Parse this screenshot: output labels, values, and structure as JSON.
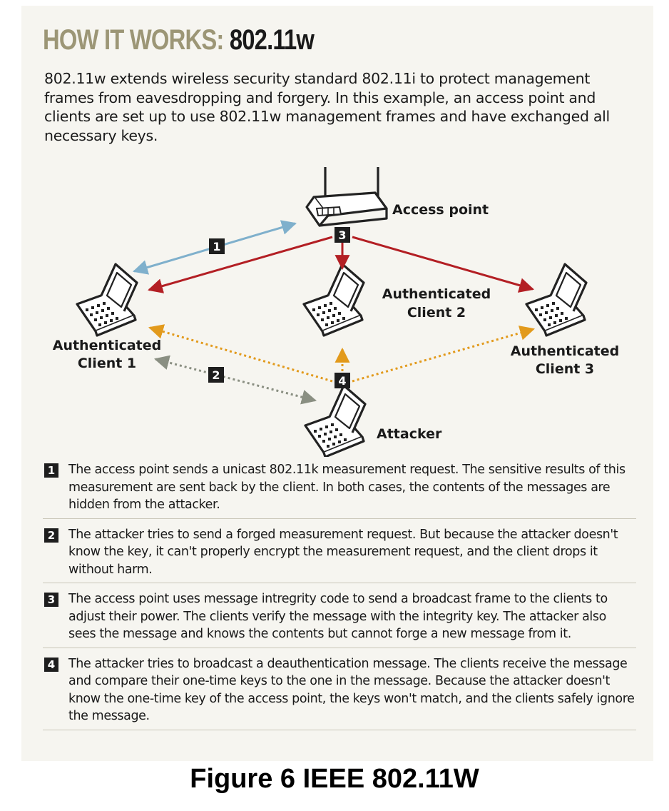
{
  "title": {
    "highlight": "HOW IT WORKS:",
    "model": "802.11w"
  },
  "intro": "802.11w extends wireless security standard 802.11i to protect management frames from eavesdropping and forgery. In this example, an access point and clients are set up to use 802.11w management frames and have exchanged all necessary keys.",
  "diagram": {
    "nodes": {
      "access_point": "Access point",
      "client1_line1": "Authenticated",
      "client1_line2": "Client 1",
      "client2_line1": "Authenticated",
      "client2_line2": "Client 2",
      "client3_line1": "Authenticated",
      "client3_line2": "Client 3",
      "attacker": "Attacker"
    },
    "badges": [
      "1",
      "2",
      "3",
      "4"
    ],
    "colors": {
      "step1_arrow": "#7fb0cc",
      "step2_arrow": "#8a8f82",
      "step3_arrow": "#b31f24",
      "step4_arrow": "#e29a1c",
      "heading_highlight": "#9c9676",
      "panel_background": "#f6f5f0"
    }
  },
  "steps": [
    {
      "number": "1",
      "text": "The access point sends a unicast 802.11k measurement request. The sensitive results of this measurement are sent back by the client. In both cases, the contents of the messages are hidden from the attacker."
    },
    {
      "number": "2",
      "text": "The attacker tries to send a forged measurement request. But because the attacker doesn't know the key, it can't properly encrypt the measurement request, and the client drops it without harm."
    },
    {
      "number": "3",
      "text": "The access point uses message intregrity code to send a broadcast frame to the clients to adjust their power. The clients verify the message with the integrity key. The attacker also sees the message and knows the contents but cannot forge a new message from it."
    },
    {
      "number": "4",
      "text": "The attacker tries to broadcast a deauthentication message. The clients receive the message and compare their one-time keys to the one in the message. Because the attacker doesn't know the one-time key of the access point, the keys won't match, and the clients safely ignore the message."
    }
  ],
  "caption": "Figure 6 IEEE 802.11W"
}
